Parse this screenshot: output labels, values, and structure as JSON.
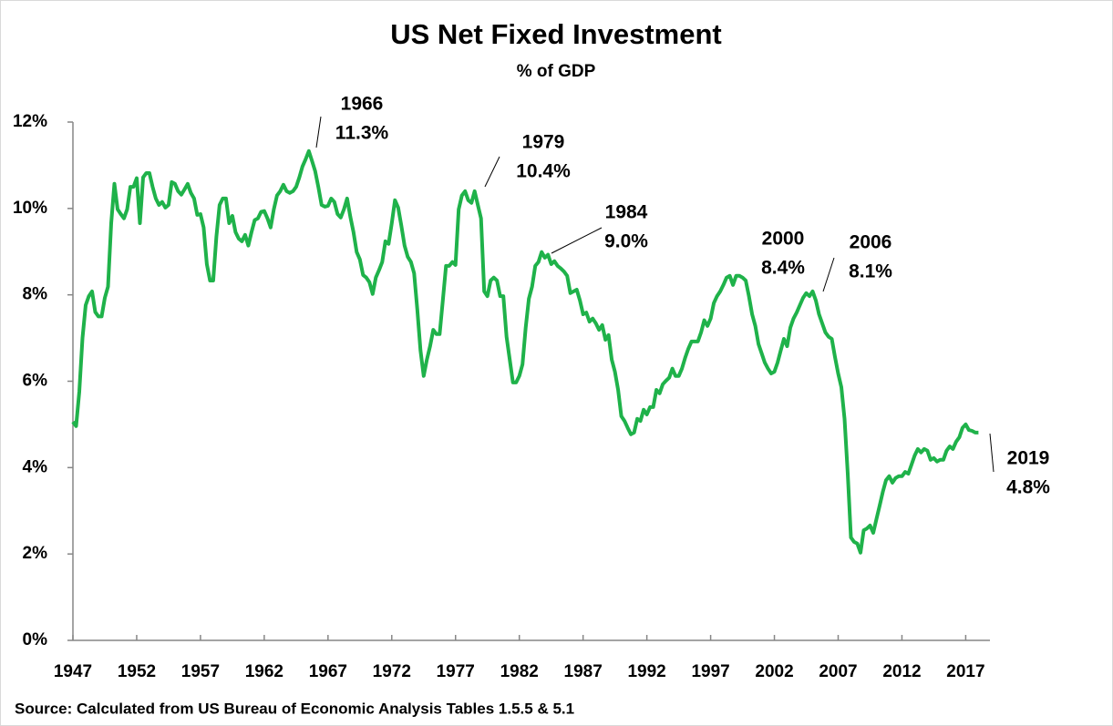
{
  "chart_data": {
    "type": "line",
    "title": "US Net Fixed Investment",
    "subtitle": "% of GDP",
    "source": "Source: Calculated from US Bureau of Economic  Analysis Tables 1.5.5 & 5.1",
    "xlim": [
      1947,
      2018.9
    ],
    "xticks": [
      1947,
      1952,
      1957,
      1962,
      1967,
      1972,
      1977,
      1982,
      1987,
      1992,
      1997,
      2002,
      2007,
      2012,
      2017
    ],
    "ylim": [
      0,
      12
    ],
    "yticks": [
      {
        "value": 0,
        "label": "0%"
      },
      {
        "value": 2,
        "label": "2%"
      },
      {
        "value": 4,
        "label": "4%"
      },
      {
        "value": 6,
        "label": "6%"
      },
      {
        "value": 8,
        "label": "8%"
      },
      {
        "value": 10,
        "label": "10%"
      },
      {
        "value": 12,
        "label": "12%"
      }
    ],
    "grid": false,
    "annotations": [
      {
        "year": "1966",
        "text": "11.3%"
      },
      {
        "year": "1979",
        "text": "10.4%"
      },
      {
        "year": "1984",
        "text": "9.0%"
      },
      {
        "year": "2000",
        "text": "8.4%"
      },
      {
        "year": "2006",
        "text": "8.1%"
      },
      {
        "year": "2019",
        "text": "4.8%"
      }
    ],
    "series": [
      {
        "color": "#1fb24a",
        "x": [
          1947,
          1947.25,
          1947.5,
          1947.75,
          1948,
          1948.25,
          1948.5,
          1948.75,
          1949,
          1949.25,
          1949.5,
          1949.75,
          1950,
          1950.25,
          1950.5,
          1950.75,
          1951,
          1951.25,
          1951.5,
          1951.75,
          1952,
          1952.25,
          1952.5,
          1952.75,
          1953,
          1953.25,
          1953.5,
          1953.75,
          1954,
          1954.25,
          1954.5,
          1954.75,
          1955,
          1955.25,
          1955.5,
          1955.75,
          1956,
          1956.25,
          1956.5,
          1956.75,
          1957,
          1957.25,
          1957.5,
          1957.75,
          1958,
          1958.25,
          1958.5,
          1958.75,
          1959,
          1959.25,
          1959.5,
          1959.75,
          1960,
          1960.25,
          1960.5,
          1960.75,
          1961,
          1961.25,
          1961.5,
          1961.75,
          1962,
          1962.25,
          1962.5,
          1962.75,
          1963,
          1963.25,
          1963.5,
          1963.75,
          1964,
          1964.25,
          1964.5,
          1964.75,
          1965,
          1965.25,
          1965.5,
          1965.75,
          1966,
          1966.25,
          1966.5,
          1966.75,
          1967,
          1967.25,
          1967.5,
          1967.75,
          1968,
          1968.25,
          1968.5,
          1968.75,
          1969,
          1969.25,
          1969.5,
          1969.75,
          1970,
          1970.25,
          1970.5,
          1970.75,
          1971,
          1971.25,
          1971.5,
          1971.75,
          1972,
          1972.25,
          1972.5,
          1972.75,
          1973,
          1973.25,
          1973.5,
          1973.75,
          1974,
          1974.25,
          1974.5,
          1974.75,
          1975,
          1975.25,
          1975.5,
          1975.75,
          1976,
          1976.25,
          1976.5,
          1976.75,
          1977,
          1977.25,
          1977.5,
          1977.75,
          1978,
          1978.25,
          1978.5,
          1978.75,
          1979,
          1979.25,
          1979.5,
          1979.75,
          1980,
          1980.25,
          1980.5,
          1980.75,
          1981,
          1981.25,
          1981.5,
          1981.75,
          1982,
          1982.25,
          1982.5,
          1982.75,
          1983,
          1983.25,
          1983.5,
          1983.75,
          1984,
          1984.25,
          1984.5,
          1984.75,
          1985,
          1985.25,
          1985.5,
          1985.75,
          1986,
          1986.25,
          1986.5,
          1986.75,
          1987,
          1987.25,
          1987.5,
          1987.75,
          1988,
          1988.25,
          1988.5,
          1988.75,
          1989,
          1989.25,
          1989.5,
          1989.75,
          1990,
          1990.25,
          1990.5,
          1990.75,
          1991,
          1991.25,
          1991.5,
          1991.75,
          1992,
          1992.25,
          1992.5,
          1992.75,
          1993,
          1993.25,
          1993.5,
          1993.75,
          1994,
          1994.25,
          1994.5,
          1994.75,
          1995,
          1995.25,
          1995.5,
          1995.75,
          1996,
          1996.25,
          1996.5,
          1996.75,
          1997,
          1997.25,
          1997.5,
          1997.75,
          1998,
          1998.25,
          1998.5,
          1998.75,
          1999,
          1999.25,
          1999.5,
          1999.75,
          2000,
          2000.25,
          2000.5,
          2000.75,
          2001,
          2001.25,
          2001.5,
          2001.75,
          2002,
          2002.25,
          2002.5,
          2002.75,
          2003,
          2003.25,
          2003.5,
          2003.75,
          2004,
          2004.25,
          2004.5,
          2004.75,
          2005,
          2005.25,
          2005.5,
          2005.75,
          2006,
          2006.25,
          2006.5,
          2006.75,
          2007,
          2007.25,
          2007.5,
          2007.75,
          2008,
          2008.25,
          2008.5,
          2008.75,
          2009,
          2009.25,
          2009.5,
          2009.75,
          2010,
          2010.25,
          2010.5,
          2010.75,
          2011,
          2011.25,
          2011.5,
          2011.75,
          2012,
          2012.25,
          2012.5,
          2012.75,
          2013,
          2013.25,
          2013.5,
          2013.75,
          2014,
          2014.25,
          2014.5,
          2014.75,
          2015,
          2015.25,
          2015.5,
          2015.75,
          2016,
          2016.25,
          2016.5,
          2016.75,
          2017,
          2017.25,
          2017.5,
          2017.75,
          2018
        ],
        "values": [
          5.06,
          4.96,
          5.76,
          7.0,
          7.76,
          7.97,
          8.08,
          7.6,
          7.5,
          7.5,
          7.93,
          8.19,
          9.66,
          10.57,
          9.98,
          9.87,
          9.77,
          9.98,
          10.5,
          10.5,
          10.7,
          9.66,
          10.72,
          10.82,
          10.82,
          10.5,
          10.23,
          10.08,
          10.15,
          10.02,
          10.08,
          10.61,
          10.57,
          10.4,
          10.32,
          10.44,
          10.57,
          10.36,
          10.23,
          9.85,
          9.87,
          9.56,
          8.71,
          8.33,
          8.33,
          9.35,
          10.08,
          10.23,
          10.23,
          9.66,
          9.83,
          9.45,
          9.3,
          9.24,
          9.39,
          9.14,
          9.45,
          9.73,
          9.77,
          9.92,
          9.94,
          9.77,
          9.56,
          9.98,
          10.3,
          10.4,
          10.55,
          10.4,
          10.36,
          10.4,
          10.5,
          10.72,
          10.97,
          11.14,
          11.33,
          11.1,
          10.86,
          10.49,
          10.08,
          10.04,
          10.06,
          10.23,
          10.15,
          9.87,
          9.79,
          9.98,
          10.23,
          9.81,
          9.45,
          8.99,
          8.82,
          8.46,
          8.4,
          8.29,
          8.02,
          8.4,
          8.57,
          8.76,
          9.24,
          9.18,
          9.66,
          10.19,
          10.02,
          9.6,
          9.14,
          8.88,
          8.76,
          8.5,
          7.66,
          6.71,
          6.12,
          6.5,
          6.81,
          7.19,
          7.09,
          7.09,
          7.87,
          8.67,
          8.67,
          8.76,
          8.69,
          9.98,
          10.3,
          10.4,
          10.19,
          10.13,
          10.4,
          10.08,
          9.77,
          8.08,
          7.97,
          8.33,
          8.4,
          8.33,
          7.97,
          7.97,
          7.03,
          6.5,
          5.97,
          5.97,
          6.12,
          6.39,
          7.24,
          7.91,
          8.19,
          8.67,
          8.76,
          8.99,
          8.86,
          8.93,
          8.71,
          8.78,
          8.67,
          8.61,
          8.54,
          8.44,
          8.04,
          8.08,
          8.12,
          7.87,
          7.55,
          7.59,
          7.38,
          7.45,
          7.34,
          7.19,
          7.3,
          6.96,
          7.07,
          6.5,
          6.22,
          5.8,
          5.19,
          5.08,
          4.92,
          4.77,
          4.81,
          5.13,
          5.08,
          5.34,
          5.23,
          5.4,
          5.4,
          5.8,
          5.72,
          5.93,
          6.01,
          6.08,
          6.29,
          6.12,
          6.12,
          6.29,
          6.54,
          6.75,
          6.92,
          6.92,
          6.92,
          7.13,
          7.41,
          7.28,
          7.45,
          7.81,
          7.97,
          8.08,
          8.23,
          8.4,
          8.44,
          8.23,
          8.44,
          8.44,
          8.4,
          8.33,
          7.97,
          7.55,
          7.28,
          6.86,
          6.65,
          6.43,
          6.29,
          6.18,
          6.22,
          6.43,
          6.71,
          6.98,
          6.81,
          7.24,
          7.45,
          7.59,
          7.76,
          7.93,
          8.04,
          7.97,
          8.08,
          7.87,
          7.55,
          7.34,
          7.13,
          7.03,
          6.98,
          6.56,
          6.18,
          5.86,
          5.13,
          3.86,
          2.38,
          2.28,
          2.24,
          2.03,
          2.55,
          2.59,
          2.66,
          2.49,
          2.81,
          3.12,
          3.44,
          3.71,
          3.8,
          3.65,
          3.76,
          3.8,
          3.8,
          3.9,
          3.86,
          4.07,
          4.28,
          4.43,
          4.35,
          4.43,
          4.39,
          4.18,
          4.22,
          4.14,
          4.18,
          4.18,
          4.39,
          4.49,
          4.43,
          4.6,
          4.7,
          4.92,
          5.0,
          4.87,
          4.85,
          4.81,
          4.81
        ]
      }
    ]
  }
}
